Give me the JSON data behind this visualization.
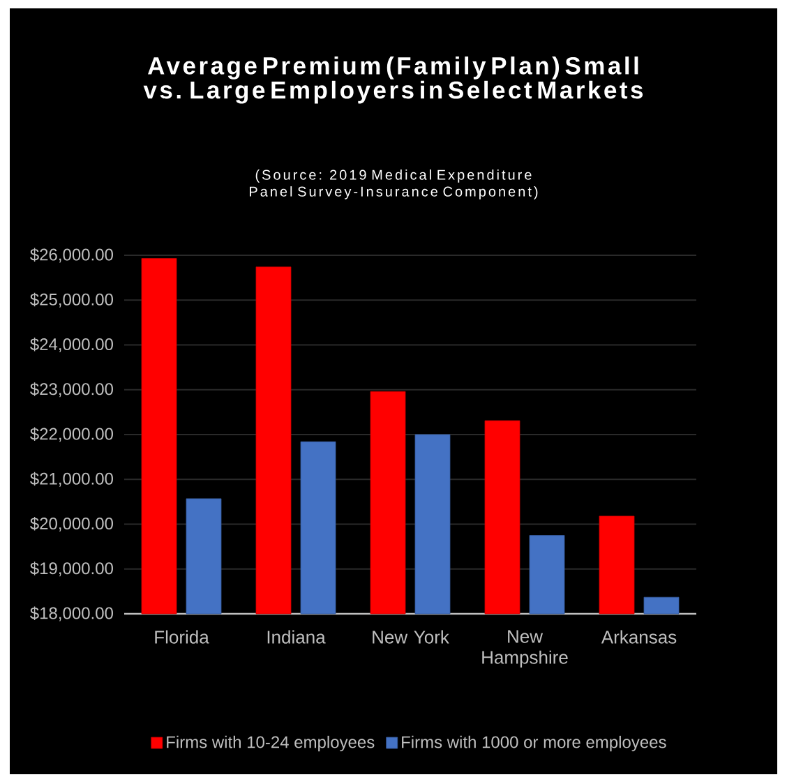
{
  "chart_data": {
    "type": "bar",
    "title": "Average Premium (Family Plan) Small vs. Large Employers in Select Markets",
    "subtitle": "(Source: 2019 Medical Expenditure Panel Survey-Insurance Component)",
    "categories": [
      "Florida",
      "Indiana",
      "New York",
      "New Hampshire",
      "Arkansas"
    ],
    "series": [
      {
        "name": "Firms with 10-24 employees",
        "color": "#ff0000",
        "values": [
          25930,
          25740,
          22960,
          22310,
          20180
        ]
      },
      {
        "name": "Firms with 1000 or more employees",
        "color": "#4472c4",
        "values": [
          20570,
          21840,
          22000,
          19750,
          18370
        ]
      }
    ],
    "ylim": [
      18000,
      26000
    ],
    "yticks": [
      {
        "value": 18000,
        "label": "$18,000.00"
      },
      {
        "value": 19000,
        "label": "$19,000.00"
      },
      {
        "value": 20000,
        "label": "$20,000.00"
      },
      {
        "value": 21000,
        "label": "$21,000.00"
      },
      {
        "value": 22000,
        "label": "$22,000.00"
      },
      {
        "value": 23000,
        "label": "$23,000.00"
      },
      {
        "value": 24000,
        "label": "$24,000.00"
      },
      {
        "value": 25000,
        "label": "$25,000.00"
      },
      {
        "value": 26000,
        "label": "$26,000.00"
      }
    ],
    "grid": "y",
    "legend": "bottom"
  }
}
